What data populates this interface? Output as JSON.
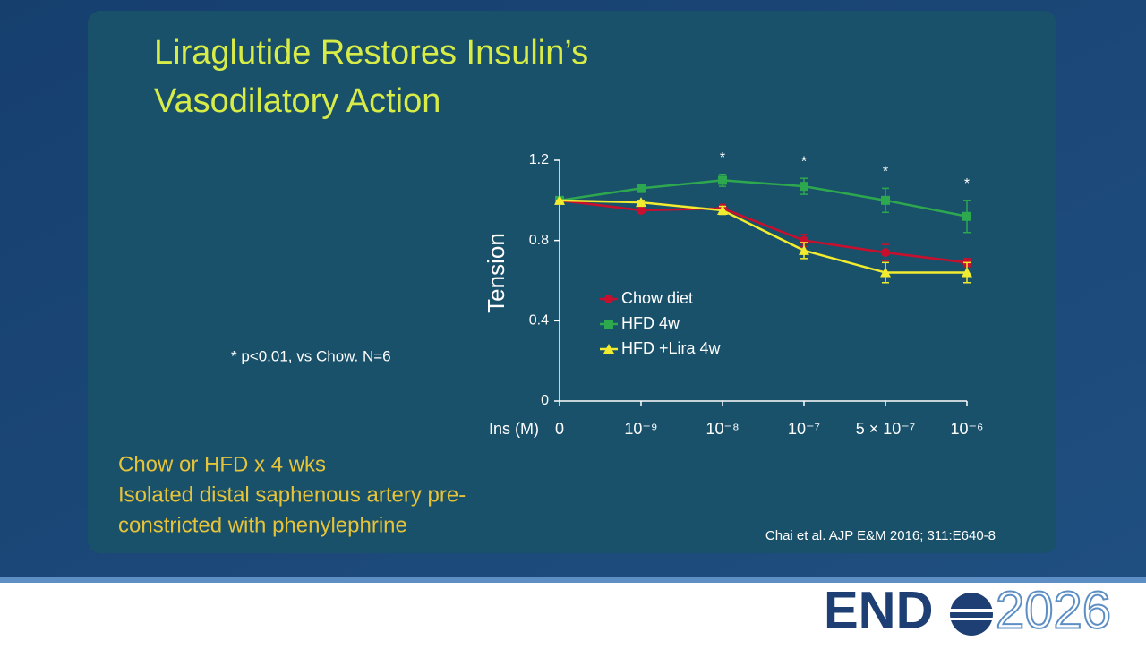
{
  "slide": {
    "title_lines": [
      "Liraglutide Restores Insulin’s",
      "Vasodilatory Action"
    ],
    "footnote": "* p<0.01, vs Chow. N=6",
    "body_lines": [
      "Chow or HFD x 4 wks",
      "Isolated distal saphenous artery pre-",
      "constricted with phenylephrine"
    ],
    "citation": "Chai et al. AJP E&M 2016; 311:E640-8",
    "logo": {
      "brand": "END",
      "year": "2026"
    }
  },
  "chart_data": {
    "type": "line",
    "y_label": "Tension",
    "x_label": "Ins (M)",
    "categories": [
      "0",
      "10⁻⁹",
      "10⁻⁸",
      "10⁻⁷",
      "5 × 10⁻⁷",
      "10⁻⁶"
    ],
    "ylim": [
      0,
      1.2
    ],
    "yticks": [
      0,
      0.4,
      0.8,
      1.2
    ],
    "series": [
      {
        "name": "Chow diet",
        "color": "#c8102e",
        "marker": "circle",
        "values": [
          1.0,
          0.95,
          0.96,
          0.8,
          0.74,
          0.69
        ],
        "errors": [
          0,
          0.01,
          0.02,
          0.03,
          0.04,
          0.02
        ]
      },
      {
        "name": "HFD 4w",
        "color": "#2ea84f",
        "marker": "square",
        "values": [
          1.0,
          1.06,
          1.1,
          1.07,
          1.0,
          0.92
        ],
        "errors": [
          0,
          0.02,
          0.03,
          0.04,
          0.06,
          0.08
        ]
      },
      {
        "name": "HFD +Lira 4w",
        "color": "#f2ec30",
        "marker": "triangle",
        "values": [
          1.0,
          0.99,
          0.95,
          0.75,
          0.64,
          0.64
        ],
        "errors": [
          0,
          0.01,
          0.02,
          0.04,
          0.05,
          0.05
        ]
      }
    ],
    "annotations": [
      {
        "x": "10⁻⁸",
        "text": "*"
      },
      {
        "x": "10⁻⁷",
        "text": "*"
      },
      {
        "x": "5 × 10⁻⁷",
        "text": "*"
      },
      {
        "x": "10⁻⁶",
        "text": "*"
      }
    ]
  }
}
